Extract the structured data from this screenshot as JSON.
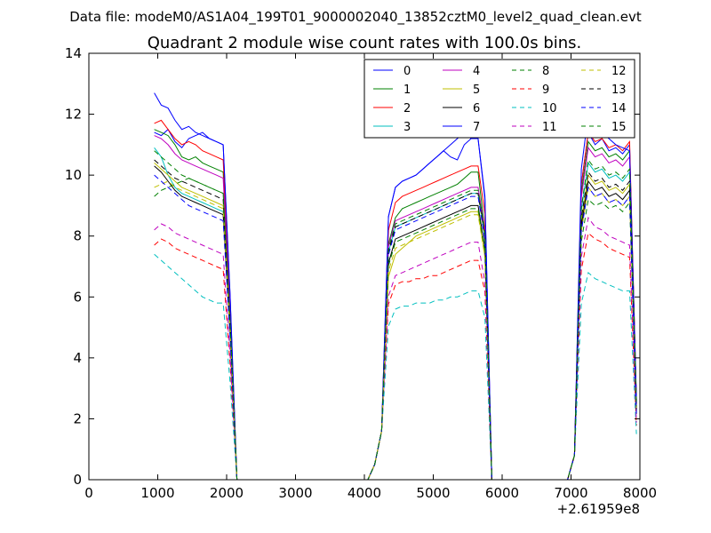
{
  "figure": {
    "suptitle": "Data file: modeM0/AS1A04_199T01_9000002040_13852cztM0_level2_quad_clean.evt"
  },
  "chart_data": {
    "type": "line",
    "title": "Quadrant 2 module wise count rates with 100.0s bins.",
    "xlabel": "",
    "ylabel": "",
    "xlim": [
      0,
      8000
    ],
    "ylim": [
      0,
      14
    ],
    "xticks": [
      "0",
      "1000",
      "2000",
      "3000",
      "4000",
      "5000",
      "6000",
      "7000",
      "8000"
    ],
    "yticks": [
      "0",
      "2",
      "4",
      "6",
      "8",
      "10",
      "12",
      "14"
    ],
    "x_offset_label": "+2.61959e8",
    "grid": false,
    "legend": {
      "placement": "upper right",
      "columns": 4
    },
    "x": [
      950,
      1050,
      1150,
      1250,
      1350,
      1450,
      1550,
      1650,
      1750,
      1850,
      1950,
      2050,
      2150,
      2250,
      2350,
      2450,
      2550,
      2650,
      2750,
      2850,
      2950,
      3050,
      3150,
      3250,
      3350,
      3450,
      3550,
      3650,
      3750,
      3850,
      3950,
      4050,
      4150,
      4250,
      4350,
      4450,
      4550,
      4650,
      4750,
      4850,
      4950,
      5050,
      5150,
      5250,
      5350,
      5450,
      5550,
      5650,
      5750,
      5850,
      5950,
      6050,
      6150,
      6250,
      6350,
      6450,
      6550,
      6650,
      6750,
      6850,
      6950,
      7050,
      7150,
      7250,
      7350,
      7450,
      7550,
      7650,
      7750,
      7850,
      7950
    ],
    "series": [
      {
        "name": "0",
        "color": "#0000ff",
        "dash": "solid",
        "active": [
          11.4,
          11.3,
          11.5,
          11.1,
          10.9,
          11.2,
          11.3,
          11.4,
          11.2,
          11.1,
          11.0
        ],
        "low": [
          9.6,
          9.8,
          9.9,
          10.0,
          10.2,
          10.4,
          10.6,
          10.8,
          10.6,
          10.5,
          11.0,
          11.2,
          9.7
        ],
        "high": [
          11.4,
          11.0,
          11.2,
          10.8,
          10.9,
          10.7,
          11.0,
          10.6,
          10.3
        ]
      },
      {
        "name": "1",
        "color": "#008000",
        "dash": "solid",
        "active": [
          11.5,
          11.4,
          11.3,
          11.0,
          10.6,
          10.5,
          10.6,
          10.4,
          10.3,
          10.2,
          10.1
        ],
        "low": [
          8.6,
          8.9,
          9.0,
          9.1,
          9.2,
          9.3,
          9.4,
          9.5,
          9.6,
          9.7,
          9.9,
          10.1,
          8.6
        ],
        "high": [
          11.1,
          10.8,
          10.9,
          10.6,
          10.7,
          10.5,
          10.8,
          10.4,
          10.2
        ]
      },
      {
        "name": "2",
        "color": "#ff0000",
        "dash": "solid",
        "active": [
          11.7,
          11.8,
          11.5,
          11.2,
          11.0,
          11.1,
          11.0,
          10.8,
          10.7,
          10.6,
          10.5
        ],
        "low": [
          9.1,
          9.3,
          9.4,
          9.5,
          9.6,
          9.7,
          9.8,
          9.9,
          10.0,
          10.1,
          10.2,
          10.3,
          9.2
        ],
        "high": [
          11.4,
          11.1,
          11.2,
          10.9,
          11.0,
          10.8,
          11.1,
          10.7,
          10.5
        ]
      },
      {
        "name": "3",
        "color": "#00bfbf",
        "dash": "solid",
        "active": [
          10.9,
          10.6,
          10.0,
          9.6,
          9.4,
          9.3,
          9.2,
          9.1,
          9.0,
          8.9,
          8.8
        ],
        "low": [
          8.3,
          8.4,
          8.5,
          8.6,
          8.7,
          8.8,
          8.9,
          9.0,
          9.1,
          9.2,
          9.3,
          9.4,
          8.4
        ],
        "high": [
          10.4,
          10.1,
          10.2,
          9.9,
          10.0,
          9.8,
          10.1,
          9.7,
          9.5
        ]
      },
      {
        "name": "4",
        "color": "#bf00bf",
        "dash": "solid",
        "active": [
          11.3,
          11.2,
          11.0,
          10.7,
          10.5,
          10.4,
          10.3,
          10.2,
          10.1,
          10.0,
          9.9
        ],
        "low": [
          8.5,
          8.6,
          8.7,
          8.8,
          8.9,
          9.0,
          9.1,
          9.2,
          9.3,
          9.4,
          9.5,
          9.6,
          8.6
        ],
        "high": [
          10.9,
          10.6,
          10.7,
          10.4,
          10.5,
          10.3,
          10.6,
          10.2,
          10.0
        ]
      },
      {
        "name": "5",
        "color": "#bfbf00",
        "dash": "solid",
        "active": [
          10.4,
          10.2,
          10.0,
          9.8,
          9.6,
          9.5,
          9.4,
          9.3,
          9.2,
          9.1,
          9.0
        ],
        "low": [
          7.4,
          7.6,
          7.8,
          8.0,
          8.1,
          8.2,
          8.3,
          8.4,
          8.5,
          8.6,
          8.7,
          8.8,
          7.7
        ],
        "high": [
          10.0,
          9.7,
          9.8,
          9.5,
          9.6,
          9.4,
          9.7,
          9.3,
          9.1
        ]
      },
      {
        "name": "6",
        "color": "#000000",
        "dash": "solid",
        "active": [
          10.3,
          10.1,
          9.8,
          9.5,
          9.3,
          9.2,
          9.1,
          9.0,
          8.9,
          8.8,
          8.7
        ],
        "low": [
          7.9,
          8.0,
          8.1,
          8.2,
          8.3,
          8.4,
          8.5,
          8.6,
          8.7,
          8.8,
          8.9,
          9.0,
          8.0
        ],
        "high": [
          9.8,
          9.5,
          9.6,
          9.3,
          9.4,
          9.2,
          9.5,
          9.1,
          8.9
        ]
      },
      {
        "name": "7",
        "color": "#0000ff",
        "dash": "solid",
        "active": [
          12.7,
          12.3,
          12.2,
          11.8,
          11.5,
          11.6,
          11.4,
          11.3,
          11.2,
          11.1,
          11.0
        ],
        "low": [
          9.6,
          9.8,
          9.9,
          10.0,
          10.2,
          10.4,
          10.6,
          10.8,
          11.0,
          11.2,
          11.4,
          11.2,
          9.8
        ],
        "high": [
          12.0,
          11.6,
          11.4,
          11.2,
          11.0,
          10.9,
          10.8,
          10.6,
          10.4
        ]
      },
      {
        "name": "8",
        "color": "#008000",
        "dash": "dashed",
        "active": [
          9.3,
          9.5,
          9.6,
          9.7,
          9.8,
          9.9,
          9.8,
          9.7,
          9.6,
          9.5,
          9.4
        ],
        "low": [
          7.8,
          7.9,
          8.0,
          8.1,
          8.2,
          8.3,
          8.4,
          8.5,
          8.6,
          8.7,
          8.8,
          8.9,
          7.9
        ],
        "high": [
          9.2,
          9.0,
          9.1,
          8.9,
          9.0,
          8.8,
          9.1,
          8.7,
          8.6
        ]
      },
      {
        "name": "9",
        "color": "#ff0000",
        "dash": "dashed",
        "active": [
          7.7,
          7.9,
          7.8,
          7.6,
          7.5,
          7.4,
          7.3,
          7.2,
          7.1,
          7.0,
          6.9
        ],
        "low": [
          6.4,
          6.5,
          6.5,
          6.6,
          6.6,
          6.7,
          6.7,
          6.8,
          6.9,
          7.0,
          7.1,
          7.2,
          6.5
        ],
        "high": [
          8.1,
          7.9,
          7.8,
          7.6,
          7.5,
          7.4,
          7.3,
          7.2,
          7.1
        ]
      },
      {
        "name": "10",
        "color": "#00bfbf",
        "dash": "dashed",
        "active": [
          7.4,
          7.2,
          7.0,
          6.8,
          6.6,
          6.4,
          6.2,
          6.0,
          5.9,
          5.8,
          5.8
        ],
        "low": [
          5.6,
          5.7,
          5.7,
          5.8,
          5.8,
          5.8,
          5.9,
          5.9,
          6.0,
          6.0,
          6.1,
          6.2,
          5.6
        ],
        "high": [
          6.8,
          6.6,
          6.5,
          6.4,
          6.3,
          6.2,
          6.2,
          6.1,
          6.0
        ]
      },
      {
        "name": "11",
        "color": "#bf00bf",
        "dash": "dashed",
        "active": [
          8.2,
          8.4,
          8.3,
          8.1,
          8.0,
          7.9,
          7.8,
          7.7,
          7.6,
          7.5,
          7.4
        ],
        "low": [
          6.7,
          6.8,
          6.9,
          7.0,
          7.1,
          7.2,
          7.3,
          7.4,
          7.5,
          7.6,
          7.7,
          7.8,
          6.8
        ],
        "high": [
          8.6,
          8.3,
          8.2,
          8.0,
          7.9,
          7.8,
          7.7,
          7.6,
          7.5
        ]
      },
      {
        "name": "12",
        "color": "#bfbf00",
        "dash": "dashed",
        "active": [
          9.6,
          9.7,
          9.8,
          9.6,
          9.5,
          9.4,
          9.3,
          9.2,
          9.1,
          9.0,
          8.9
        ],
        "low": [
          7.6,
          7.7,
          7.8,
          7.9,
          8.0,
          8.1,
          8.2,
          8.3,
          8.4,
          8.5,
          8.6,
          8.7,
          7.7
        ],
        "high": [
          9.6,
          9.3,
          9.4,
          9.1,
          9.2,
          9.0,
          9.3,
          8.9,
          8.7
        ]
      },
      {
        "name": "13",
        "color": "#000000",
        "dash": "dashed",
        "active": [
          10.5,
          10.3,
          10.1,
          9.9,
          9.8,
          9.7,
          9.6,
          9.5,
          9.4,
          9.3,
          9.2
        ],
        "low": [
          8.3,
          8.4,
          8.5,
          8.6,
          8.7,
          8.8,
          8.9,
          9.0,
          9.1,
          9.2,
          9.3,
          9.4,
          8.4
        ],
        "high": [
          10.1,
          9.8,
          9.9,
          9.6,
          9.7,
          9.5,
          9.8,
          9.4,
          9.2
        ]
      },
      {
        "name": "14",
        "color": "#0000ff",
        "dash": "dashed",
        "active": [
          10.0,
          9.8,
          9.6,
          9.4,
          9.2,
          9.0,
          8.9,
          8.8,
          8.7,
          8.6,
          8.5
        ],
        "low": [
          8.2,
          8.3,
          8.4,
          8.5,
          8.6,
          8.7,
          8.8,
          8.9,
          9.0,
          9.1,
          9.2,
          9.3,
          8.3
        ],
        "high": [
          9.6,
          9.3,
          9.4,
          9.1,
          9.2,
          9.0,
          9.3,
          8.9,
          8.7
        ]
      },
      {
        "name": "15",
        "color": "#008000",
        "dash": "dashed",
        "active": [
          10.8,
          10.6,
          10.4,
          10.2,
          10.0,
          9.9,
          9.8,
          9.7,
          9.6,
          9.5,
          9.4
        ],
        "low": [
          8.4,
          8.5,
          8.6,
          8.7,
          8.8,
          8.9,
          9.0,
          9.1,
          9.2,
          9.3,
          9.4,
          9.5,
          8.5
        ],
        "high": [
          10.5,
          10.2,
          10.3,
          10.0,
          10.1,
          9.9,
          10.2,
          9.8,
          9.6
        ]
      }
    ]
  }
}
